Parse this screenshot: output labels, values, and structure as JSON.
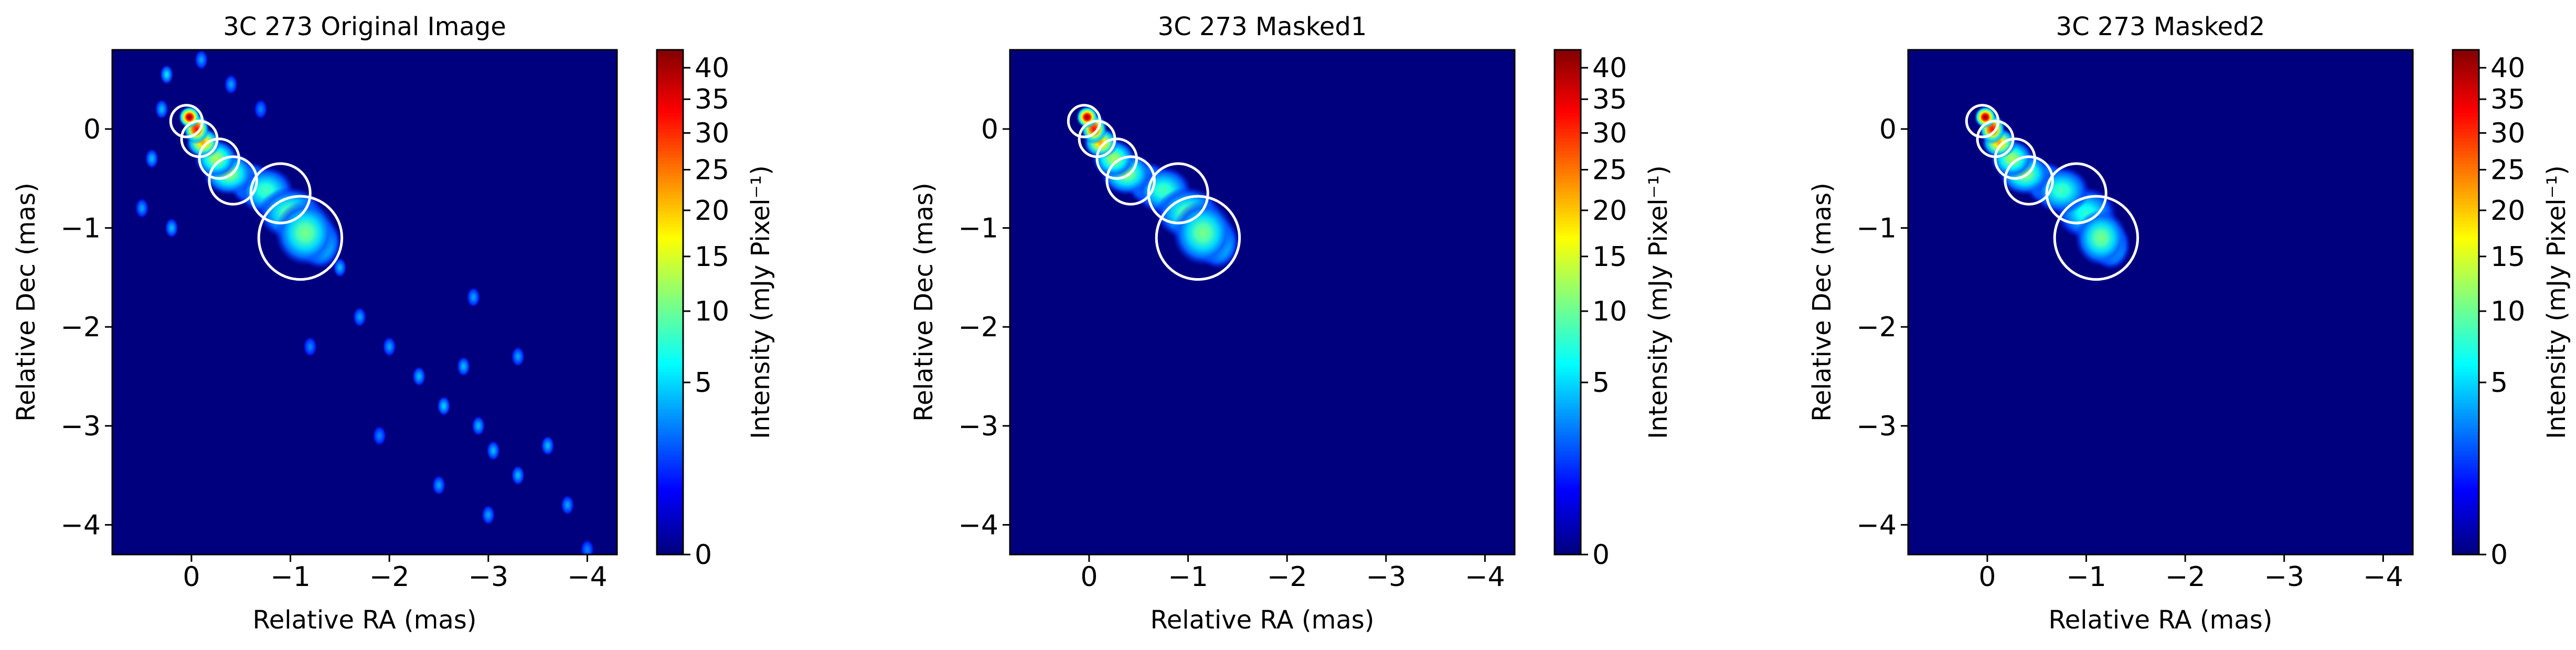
{
  "chart_data": [
    {
      "type": "heatmap",
      "title": "3C 273 Original Image",
      "xlabel": "Relative RA (mas)",
      "ylabel": "Relative Dec (mas)",
      "xlim": [
        0.8,
        -4.3
      ],
      "ylim": [
        -4.3,
        0.8
      ],
      "xticks": [
        0,
        -1,
        -2,
        -3,
        -4
      ],
      "xtick_labels": [
        "0",
        "−1",
        "−2",
        "−3",
        "−4"
      ],
      "yticks": [
        0,
        -1,
        -2,
        -3,
        -4
      ],
      "ytick_labels": [
        "0",
        "−1",
        "−2",
        "−3",
        "−4"
      ],
      "colorbar": {
        "label": "Intensity (mJy Pixel⁻¹)",
        "colormap": "jet",
        "range": [
          0,
          43
        ],
        "scale": "sqrt",
        "ticks": [
          0,
          5,
          10,
          15,
          20,
          25,
          30,
          35,
          40
        ],
        "tick_labels": [
          "0",
          "5",
          "10",
          "15",
          "20",
          "25",
          "30",
          "35",
          "40"
        ]
      },
      "background_color": "#00007f",
      "circle_color": "#ffffff",
      "circles": [
        {
          "ra": 0.05,
          "dec": 0.08,
          "r": 0.16
        },
        {
          "ra": -0.08,
          "dec": -0.1,
          "r": 0.18
        },
        {
          "ra": -0.28,
          "dec": -0.3,
          "r": 0.2
        },
        {
          "ra": -0.42,
          "dec": -0.52,
          "r": 0.24
        },
        {
          "ra": -0.9,
          "dec": -0.65,
          "r": 0.3
        },
        {
          "ra": -1.1,
          "dec": -1.1,
          "r": 0.42
        }
      ],
      "emission": [
        {
          "ra": 0.02,
          "dec": 0.12,
          "peak": 43,
          "sra": 0.05,
          "sdec": 0.05
        },
        {
          "ra": -0.05,
          "dec": 0.0,
          "peak": 32,
          "sra": 0.06,
          "sdec": 0.07
        },
        {
          "ra": -0.12,
          "dec": -0.14,
          "peak": 20,
          "sra": 0.08,
          "sdec": 0.07
        },
        {
          "ra": -0.25,
          "dec": -0.3,
          "peak": 10,
          "sra": 0.1,
          "sdec": 0.09
        },
        {
          "ra": -0.38,
          "dec": -0.45,
          "peak": 9,
          "sra": 0.12,
          "sdec": 0.1
        },
        {
          "ra": -0.6,
          "dec": -0.55,
          "peak": 6,
          "sra": 0.1,
          "sdec": 0.1
        },
        {
          "ra": -0.75,
          "dec": -0.62,
          "peak": 6,
          "sra": 0.13,
          "sdec": 0.11
        },
        {
          "ra": -1.0,
          "dec": -0.85,
          "peak": 7,
          "sra": 0.15,
          "sdec": 0.12
        },
        {
          "ra": -1.15,
          "dec": -1.05,
          "peak": 8,
          "sra": 0.14,
          "sdec": 0.15
        },
        {
          "ra": -1.3,
          "dec": -1.15,
          "peak": 6,
          "sra": 0.1,
          "sdec": 0.12
        }
      ],
      "noise_sources": [
        {
          "ra": 0.25,
          "dec": 0.55,
          "peak": 3
        },
        {
          "ra": 0.3,
          "dec": 0.2,
          "peak": 2
        },
        {
          "ra": -0.1,
          "dec": 0.7,
          "peak": 1.5
        },
        {
          "ra": 0.4,
          "dec": -0.3,
          "peak": 2
        },
        {
          "ra": 0.5,
          "dec": -0.8,
          "peak": 1.5
        },
        {
          "ra": 0.2,
          "dec": -1.0,
          "peak": 2
        },
        {
          "ra": -0.4,
          "dec": 0.45,
          "peak": 1.5
        },
        {
          "ra": -0.7,
          "dec": 0.2,
          "peak": 1
        },
        {
          "ra": -1.5,
          "dec": -1.4,
          "peak": 2
        },
        {
          "ra": -1.7,
          "dec": -1.9,
          "peak": 1.5
        },
        {
          "ra": -2.0,
          "dec": -2.2,
          "peak": 1.5
        },
        {
          "ra": -2.3,
          "dec": -2.5,
          "peak": 2
        },
        {
          "ra": -2.55,
          "dec": -2.8,
          "peak": 2.5
        },
        {
          "ra": -2.75,
          "dec": -2.4,
          "peak": 2
        },
        {
          "ra": -2.9,
          "dec": -3.0,
          "peak": 2
        },
        {
          "ra": -3.05,
          "dec": -3.25,
          "peak": 2
        },
        {
          "ra": -3.3,
          "dec": -3.5,
          "peak": 2
        },
        {
          "ra": -3.6,
          "dec": -3.2,
          "peak": 2
        },
        {
          "ra": -2.5,
          "dec": -3.6,
          "peak": 1.5
        },
        {
          "ra": -3.0,
          "dec": -3.9,
          "peak": 1.5
        },
        {
          "ra": -3.8,
          "dec": -3.8,
          "peak": 1.5
        },
        {
          "ra": -2.85,
          "dec": -1.7,
          "peak": 1.5
        },
        {
          "ra": -3.3,
          "dec": -2.3,
          "peak": 1.5
        },
        {
          "ra": -1.9,
          "dec": -3.1,
          "peak": 1
        },
        {
          "ra": -4.0,
          "dec": -4.25,
          "peak": 1
        },
        {
          "ra": -1.2,
          "dec": -2.2,
          "peak": 1
        }
      ]
    },
    {
      "type": "heatmap",
      "title": "3C 273 Masked1",
      "xlabel": "Relative RA (mas)",
      "ylabel": "Relative Dec (mas)",
      "xlim": [
        0.8,
        -4.3
      ],
      "ylim": [
        -4.3,
        0.8
      ],
      "xticks": [
        0,
        -1,
        -2,
        -3,
        -4
      ],
      "xtick_labels": [
        "0",
        "−1",
        "−2",
        "−3",
        "−4"
      ],
      "yticks": [
        0,
        -1,
        -2,
        -3,
        -4
      ],
      "ytick_labels": [
        "0",
        "−1",
        "−2",
        "−3",
        "−4"
      ],
      "colorbar": {
        "label": "Intensity (mJy Pixel⁻¹)",
        "colormap": "jet",
        "range": [
          0,
          43
        ],
        "scale": "sqrt",
        "ticks": [
          0,
          5,
          10,
          15,
          20,
          25,
          30,
          35,
          40
        ],
        "tick_labels": [
          "0",
          "5",
          "10",
          "15",
          "20",
          "25",
          "30",
          "35",
          "40"
        ]
      },
      "background_color": "#00007f",
      "circle_color": "#ffffff",
      "circles": [
        {
          "ra": 0.05,
          "dec": 0.08,
          "r": 0.16
        },
        {
          "ra": -0.08,
          "dec": -0.1,
          "r": 0.18
        },
        {
          "ra": -0.28,
          "dec": -0.3,
          "r": 0.2
        },
        {
          "ra": -0.42,
          "dec": -0.52,
          "r": 0.24
        },
        {
          "ra": -0.9,
          "dec": -0.65,
          "r": 0.3
        },
        {
          "ra": -1.1,
          "dec": -1.1,
          "r": 0.42
        }
      ],
      "emission": [
        {
          "ra": 0.02,
          "dec": 0.12,
          "peak": 43,
          "sra": 0.05,
          "sdec": 0.05
        },
        {
          "ra": -0.05,
          "dec": 0.0,
          "peak": 32,
          "sra": 0.06,
          "sdec": 0.07
        },
        {
          "ra": -0.12,
          "dec": -0.14,
          "peak": 20,
          "sra": 0.08,
          "sdec": 0.07
        },
        {
          "ra": -0.25,
          "dec": -0.3,
          "peak": 10,
          "sra": 0.1,
          "sdec": 0.09
        },
        {
          "ra": -0.38,
          "dec": -0.45,
          "peak": 9,
          "sra": 0.12,
          "sdec": 0.1
        },
        {
          "ra": -0.6,
          "dec": -0.55,
          "peak": 6,
          "sra": 0.1,
          "sdec": 0.1
        },
        {
          "ra": -0.75,
          "dec": -0.62,
          "peak": 6,
          "sra": 0.13,
          "sdec": 0.11
        },
        {
          "ra": -1.0,
          "dec": -0.85,
          "peak": 7,
          "sra": 0.15,
          "sdec": 0.12
        },
        {
          "ra": -1.15,
          "dec": -1.05,
          "peak": 8,
          "sra": 0.14,
          "sdec": 0.15
        },
        {
          "ra": -1.3,
          "dec": -1.15,
          "peak": 6,
          "sra": 0.1,
          "sdec": 0.12
        }
      ],
      "noise_sources": []
    },
    {
      "type": "heatmap",
      "title": "3C 273 Masked2",
      "xlabel": "Relative RA (mas)",
      "ylabel": "Relative Dec (mas)",
      "xlim": [
        0.8,
        -4.3
      ],
      "ylim": [
        -4.3,
        0.8
      ],
      "xticks": [
        0,
        -1,
        -2,
        -3,
        -4
      ],
      "xtick_labels": [
        "0",
        "−1",
        "−2",
        "−3",
        "−4"
      ],
      "yticks": [
        0,
        -1,
        -2,
        -3,
        -4
      ],
      "ytick_labels": [
        "0",
        "−1",
        "−2",
        "−3",
        "−4"
      ],
      "colorbar": {
        "label": "Intensity (mJy Pixel⁻¹)",
        "colormap": "jet",
        "range": [
          0,
          43
        ],
        "scale": "sqrt",
        "ticks": [
          0,
          5,
          10,
          15,
          20,
          25,
          30,
          35,
          40
        ],
        "tick_labels": [
          "0",
          "5",
          "10",
          "15",
          "20",
          "25",
          "30",
          "35",
          "40"
        ]
      },
      "background_color": "#00007f",
      "circle_color": "#ffffff",
      "circles": [
        {
          "ra": 0.05,
          "dec": 0.08,
          "r": 0.16
        },
        {
          "ra": -0.08,
          "dec": -0.1,
          "r": 0.18
        },
        {
          "ra": -0.28,
          "dec": -0.3,
          "r": 0.2
        },
        {
          "ra": -0.42,
          "dec": -0.52,
          "r": 0.24
        },
        {
          "ra": -0.9,
          "dec": -0.65,
          "r": 0.3
        },
        {
          "ra": -1.1,
          "dec": -1.1,
          "r": 0.42
        }
      ],
      "emission": [
        {
          "ra": 0.02,
          "dec": 0.12,
          "peak": 43,
          "sra": 0.05,
          "sdec": 0.05
        },
        {
          "ra": -0.05,
          "dec": 0.0,
          "peak": 32,
          "sra": 0.06,
          "sdec": 0.07
        },
        {
          "ra": -0.12,
          "dec": -0.14,
          "peak": 20,
          "sra": 0.08,
          "sdec": 0.07
        },
        {
          "ra": -0.25,
          "dec": -0.3,
          "peak": 10,
          "sra": 0.1,
          "sdec": 0.09
        },
        {
          "ra": -0.38,
          "dec": -0.45,
          "peak": 9,
          "sra": 0.12,
          "sdec": 0.1
        },
        {
          "ra": -0.6,
          "dec": -0.55,
          "peak": 6,
          "sra": 0.1,
          "sdec": 0.1
        },
        {
          "ra": -0.75,
          "dec": -0.62,
          "peak": 6,
          "sra": 0.13,
          "sdec": 0.11
        },
        {
          "ra": -1.0,
          "dec": -0.85,
          "peak": 5,
          "sra": 0.14,
          "sdec": 0.12
        },
        {
          "ra": -1.15,
          "dec": -1.1,
          "peak": 8,
          "sra": 0.12,
          "sdec": 0.13
        },
        {
          "ra": -1.25,
          "dec": -1.18,
          "peak": 6,
          "sra": 0.09,
          "sdec": 0.11
        }
      ],
      "noise_sources": []
    }
  ]
}
